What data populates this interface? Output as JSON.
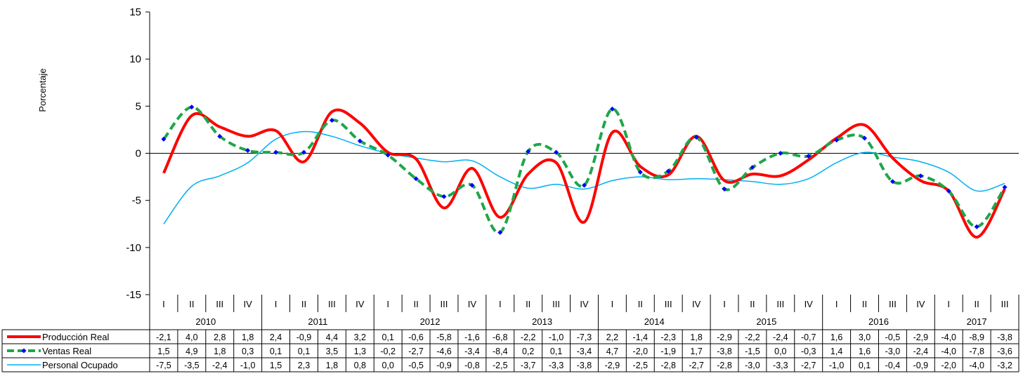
{
  "chart_data": {
    "type": "line",
    "ylabel": "Porcentaje",
    "ylim": [
      -15,
      15
    ],
    "y_ticks": [
      -15,
      -10,
      -5,
      0,
      5,
      10,
      15
    ],
    "grid": false,
    "legend": "data-table-left",
    "quarters": [
      "I",
      "II",
      "III",
      "IV",
      "I",
      "II",
      "III",
      "IV",
      "I",
      "II",
      "III",
      "IV",
      "I",
      "II",
      "III",
      "IV",
      "I",
      "II",
      "III",
      "IV",
      "I",
      "II",
      "III",
      "IV",
      "I",
      "II",
      "III",
      "IV",
      "I",
      "II",
      "III"
    ],
    "years": [
      {
        "label": "2010",
        "span": 4
      },
      {
        "label": "2011",
        "span": 4
      },
      {
        "label": "2012",
        "span": 4
      },
      {
        "label": "2013",
        "span": 4
      },
      {
        "label": "2014",
        "span": 4
      },
      {
        "label": "2015",
        "span": 4
      },
      {
        "label": "2016",
        "span": 4
      },
      {
        "label": "2017",
        "span": 3
      }
    ],
    "series": [
      {
        "name": "Producción Real",
        "color": "#ff0000",
        "style": "thick-solid",
        "values": [
          -2.1,
          4.0,
          2.8,
          1.8,
          2.4,
          -0.9,
          4.4,
          3.2,
          0.1,
          -0.6,
          -5.8,
          -1.6,
          -6.8,
          -2.2,
          -1.0,
          -7.3,
          2.2,
          -1.4,
          -2.3,
          1.8,
          -2.9,
          -2.2,
          -2.4,
          -0.7,
          1.6,
          3.0,
          -0.5,
          -2.9,
          -4.0,
          -8.9,
          -3.8
        ],
        "labels": [
          "-2,1",
          "4,0",
          "2,8",
          "1,8",
          "2,4",
          "-0,9",
          "4,4",
          "3,2",
          "0,1",
          "-0,6",
          "-5,8",
          "-1,6",
          "-6,8",
          "-2,2",
          "-1,0",
          "-7,3",
          "2,2",
          "-1,4",
          "-2,3",
          "1,8",
          "-2,9",
          "-2,2",
          "-2,4",
          "-0,7",
          "1,6",
          "3,0",
          "-0,5",
          "-2,9",
          "-4,0",
          "-8,9",
          "-3,8"
        ]
      },
      {
        "name": "Ventas Real",
        "color": "#1fa64a",
        "marker_color": "#0000ff",
        "style": "dashed-with-markers",
        "values": [
          1.5,
          4.9,
          1.8,
          0.3,
          0.1,
          0.1,
          3.5,
          1.3,
          -0.2,
          -2.7,
          -4.6,
          -3.4,
          -8.4,
          0.2,
          0.1,
          -3.4,
          4.7,
          -2.0,
          -1.9,
          1.7,
          -3.8,
          -1.5,
          0.0,
          -0.3,
          1.4,
          1.6,
          -3.0,
          -2.4,
          -4.0,
          -7.8,
          -3.6
        ],
        "labels": [
          "1,5",
          "4,9",
          "1,8",
          "0,3",
          "0,1",
          "0,1",
          "3,5",
          "1,3",
          "-0,2",
          "-2,7",
          "-4,6",
          "-3,4",
          "-8,4",
          "0,2",
          "0,1",
          "-3,4",
          "4,7",
          "-2,0",
          "-1,9",
          "1,7",
          "-3,8",
          "-1,5",
          "0,0",
          "-0,3",
          "1,4",
          "1,6",
          "-3,0",
          "-2,4",
          "-4,0",
          "-7,8",
          "-3,6"
        ]
      },
      {
        "name": "Personal Ocupado",
        "color": "#00b0f0",
        "style": "thin-solid",
        "values": [
          -7.5,
          -3.5,
          -2.4,
          -1.0,
          1.5,
          2.3,
          1.8,
          0.8,
          0.0,
          -0.5,
          -0.9,
          -0.8,
          -2.5,
          -3.7,
          -3.3,
          -3.8,
          -2.9,
          -2.5,
          -2.8,
          -2.7,
          -2.8,
          -3.0,
          -3.3,
          -2.7,
          -1.0,
          0.1,
          -0.4,
          -0.9,
          -2.0,
          -4.0,
          -3.2
        ],
        "labels": [
          "-7,5",
          "-3,5",
          "-2,4",
          "-1,0",
          "1,5",
          "2,3",
          "1,8",
          "0,8",
          "0,0",
          "-0,5",
          "-0,9",
          "-0,8",
          "-2,5",
          "-3,7",
          "-3,3",
          "-3,8",
          "-2,9",
          "-2,5",
          "-2,8",
          "-2,7",
          "-2,8",
          "-3,0",
          "-3,3",
          "-2,7",
          "-1,0",
          "0,1",
          "-0,4",
          "-0,9",
          "-2,0",
          "-4,0",
          "-3,2"
        ]
      }
    ]
  }
}
